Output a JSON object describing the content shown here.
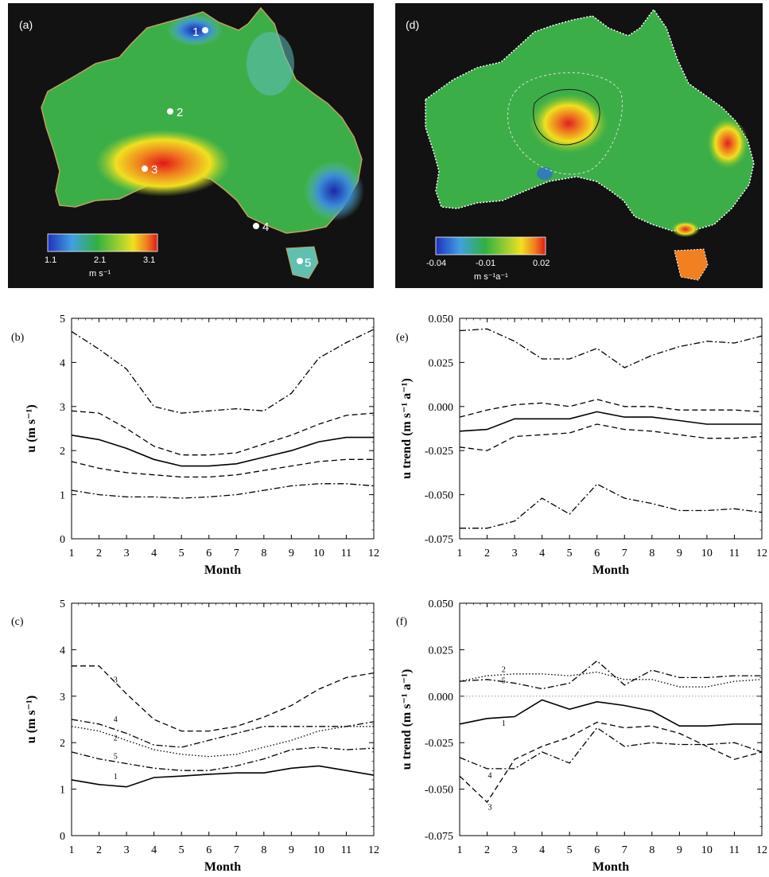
{
  "map_a": {
    "label": "(a)",
    "colorbar_ticks": [
      "1.1",
      "2.1",
      "3.1"
    ],
    "colorbar_unit": "m s⁻¹",
    "sites": [
      "1",
      "2",
      "3",
      "4",
      "5"
    ]
  },
  "map_d": {
    "label": "(d)",
    "colorbar_ticks": [
      "-0.04",
      "-0.01",
      "0.02"
    ],
    "colorbar_unit": "m s⁻¹a⁻¹"
  },
  "colors": {
    "map_background": "#121212",
    "colorbar": [
      "#2030c0",
      "#40a0e0",
      "#30b040",
      "#f0e020",
      "#f08020",
      "#e01818"
    ]
  },
  "chart_data": [
    {
      "id": "b",
      "label": "(b)",
      "type": "line",
      "xlabel": "Month",
      "ylabel": "u (m s⁻¹)",
      "ylim": [
        0,
        5
      ],
      "yticks": [
        "0",
        "1",
        "2",
        "3",
        "4",
        "5"
      ],
      "x": [
        1,
        2,
        3,
        4,
        5,
        6,
        7,
        8,
        9,
        10,
        11,
        12
      ],
      "series": [
        {
          "style": "dashdot",
          "values": [
            4.7,
            4.3,
            3.85,
            3.0,
            2.85,
            2.9,
            2.95,
            2.9,
            3.3,
            4.1,
            4.45,
            4.75
          ]
        },
        {
          "style": "dash",
          "values": [
            2.9,
            2.85,
            2.5,
            2.1,
            1.9,
            1.9,
            1.95,
            2.15,
            2.35,
            2.6,
            2.8,
            2.85
          ]
        },
        {
          "style": "solid",
          "values": [
            2.35,
            2.25,
            2.05,
            1.8,
            1.65,
            1.65,
            1.7,
            1.85,
            2.0,
            2.2,
            2.3,
            2.3
          ]
        },
        {
          "style": "dash",
          "values": [
            1.75,
            1.6,
            1.5,
            1.45,
            1.4,
            1.4,
            1.45,
            1.55,
            1.65,
            1.75,
            1.8,
            1.8
          ]
        },
        {
          "style": "dashdot",
          "values": [
            1.1,
            1.0,
            0.95,
            0.95,
            0.92,
            0.95,
            1.0,
            1.1,
            1.2,
            1.25,
            1.25,
            1.2
          ]
        }
      ],
      "series_labels": []
    },
    {
      "id": "e",
      "label": "(e)",
      "type": "line",
      "xlabel": "Month",
      "ylabel": "u trend (m s⁻¹ a⁻¹)",
      "ylim": [
        -0.075,
        0.05
      ],
      "yticks": [
        "-0.075",
        "-0.050",
        "-0.025",
        "0.000",
        "0.025",
        "0.050"
      ],
      "x": [
        1,
        2,
        3,
        4,
        5,
        6,
        7,
        8,
        9,
        10,
        11,
        12
      ],
      "series": [
        {
          "style": "dashdot",
          "values": [
            0.043,
            0.044,
            0.037,
            0.027,
            0.027,
            0.033,
            0.022,
            0.029,
            0.034,
            0.037,
            0.036,
            0.04
          ]
        },
        {
          "style": "dash",
          "values": [
            -0.006,
            -0.002,
            0.001,
            0.002,
            0.0,
            0.004,
            0.0,
            0.0,
            -0.002,
            -0.002,
            -0.002,
            -0.003
          ]
        },
        {
          "style": "solid",
          "values": [
            -0.014,
            -0.013,
            -0.007,
            -0.007,
            -0.007,
            -0.003,
            -0.006,
            -0.006,
            -0.008,
            -0.01,
            -0.01,
            -0.01
          ]
        },
        {
          "style": "dash",
          "values": [
            -0.023,
            -0.025,
            -0.017,
            -0.016,
            -0.015,
            -0.01,
            -0.013,
            -0.014,
            -0.016,
            -0.018,
            -0.018,
            -0.017
          ]
        },
        {
          "style": "dashdot",
          "values": [
            -0.069,
            -0.069,
            -0.065,
            -0.052,
            -0.061,
            -0.044,
            -0.052,
            -0.055,
            -0.059,
            -0.059,
            -0.058,
            -0.06
          ]
        }
      ],
      "series_labels": []
    },
    {
      "id": "c",
      "label": "(c)",
      "type": "line",
      "xlabel": "Month",
      "ylabel": "u (m s⁻¹)",
      "ylim": [
        0,
        5
      ],
      "yticks": [
        "0",
        "1",
        "2",
        "3",
        "4",
        "5"
      ],
      "x": [
        1,
        2,
        3,
        4,
        5,
        6,
        7,
        8,
        9,
        10,
        11,
        12
      ],
      "series": [
        {
          "name": "1",
          "style": "solid",
          "values": [
            1.2,
            1.1,
            1.05,
            1.25,
            1.28,
            1.32,
            1.35,
            1.35,
            1.45,
            1.5,
            1.4,
            1.3
          ]
        },
        {
          "name": "2",
          "style": "dot",
          "values": [
            2.35,
            2.25,
            2.05,
            1.85,
            1.75,
            1.7,
            1.75,
            1.9,
            2.05,
            2.25,
            2.35,
            2.35
          ]
        },
        {
          "name": "3",
          "style": "dash",
          "values": [
            3.65,
            3.65,
            3.05,
            2.5,
            2.25,
            2.25,
            2.35,
            2.55,
            2.8,
            3.15,
            3.4,
            3.5
          ]
        },
        {
          "name": "4",
          "style": "dashdot",
          "values": [
            2.5,
            2.4,
            2.2,
            1.95,
            1.9,
            2.05,
            2.2,
            2.35,
            2.35,
            2.35,
            2.35,
            2.45
          ]
        },
        {
          "name": "5",
          "style": "dashdot",
          "values": [
            1.8,
            1.65,
            1.55,
            1.45,
            1.4,
            1.4,
            1.5,
            1.65,
            1.85,
            1.9,
            1.85,
            1.88
          ]
        }
      ],
      "series_labels": [
        {
          "text": "3",
          "x": 2.6,
          "y": 3.3
        },
        {
          "text": "4",
          "x": 2.6,
          "y": 2.45
        },
        {
          "text": "2",
          "x": 2.6,
          "y": 2.05
        },
        {
          "text": "5",
          "x": 2.6,
          "y": 1.65
        },
        {
          "text": "1",
          "x": 2.6,
          "y": 1.22
        }
      ]
    },
    {
      "id": "f",
      "label": "(f)",
      "type": "line",
      "xlabel": "Month",
      "ylabel": "u trend (m s⁻¹ a⁻¹)",
      "ylim": [
        -0.075,
        0.05
      ],
      "yticks": [
        "-0.075",
        "-0.050",
        "-0.025",
        "0.000",
        "0.025",
        "0.050"
      ],
      "x": [
        1,
        2,
        3,
        4,
        5,
        6,
        7,
        8,
        9,
        10,
        11,
        12
      ],
      "zero_line": true,
      "series": [
        {
          "name": "1",
          "style": "solid",
          "values": [
            -0.015,
            -0.012,
            -0.011,
            -0.002,
            -0.007,
            -0.003,
            -0.005,
            -0.008,
            -0.016,
            -0.016,
            -0.015,
            -0.015
          ]
        },
        {
          "name": "2",
          "style": "dashdot",
          "values": [
            0.008,
            0.009,
            0.007,
            0.004,
            0.007,
            0.019,
            0.006,
            0.014,
            0.01,
            0.01,
            0.011,
            0.011
          ]
        },
        {
          "name": "5",
          "style": "dot",
          "values": [
            0.008,
            0.011,
            0.012,
            0.012,
            0.011,
            0.013,
            0.009,
            0.009,
            0.005,
            0.005,
            0.008,
            0.009
          ]
        },
        {
          "name": "4",
          "style": "dashdot",
          "values": [
            -0.033,
            -0.039,
            -0.039,
            -0.03,
            -0.036,
            -0.017,
            -0.027,
            -0.025,
            -0.026,
            -0.026,
            -0.025,
            -0.03
          ]
        },
        {
          "name": "3",
          "style": "dash",
          "values": [
            -0.043,
            -0.057,
            -0.034,
            -0.027,
            -0.022,
            -0.014,
            -0.017,
            -0.016,
            -0.02,
            -0.027,
            -0.034,
            -0.03
          ]
        }
      ],
      "series_labels": [
        {
          "text": "2",
          "x": 2.6,
          "y": 0.013
        },
        {
          "text": "5",
          "x": 2.6,
          "y": 0.007
        },
        {
          "text": "1",
          "x": 2.6,
          "y": -0.016
        },
        {
          "text": "4",
          "x": 2.1,
          "y": -0.044
        },
        {
          "text": "3",
          "x": 2.1,
          "y": -0.061
        }
      ]
    }
  ]
}
